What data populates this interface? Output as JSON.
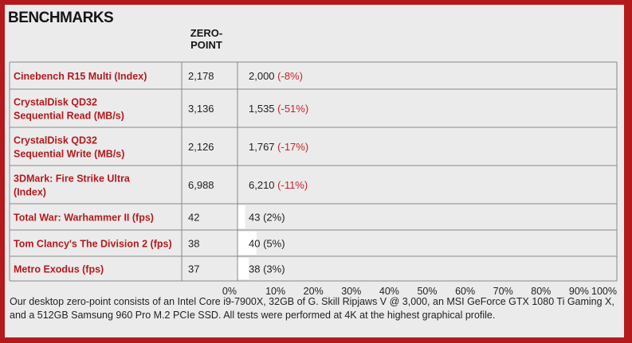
{
  "title": "BENCHMARKS",
  "column_header": "ZERO-\nPOINT",
  "footnote": "Our desktop zero-point consists of an Intel Core i9-7900X, 32GB of G. Skill Ripjaws V @ 3,000, an MSI GeForce GTX 1080 Ti Gaming X, and a 512GB Samsung 960 Pro M.2 PCIe SSD. All tests were performed at 4K at the highest graphical profile.",
  "colors": {
    "page_border": "#b41a1c",
    "label_text": "#b41a1c",
    "delta_text": "#c8222b",
    "bar": "#ffffff",
    "panel": "#ebebeb",
    "grid": "#8a8a8a"
  },
  "chart_data": {
    "type": "bar",
    "orientation": "horizontal",
    "xlim": [
      0,
      100
    ],
    "x_ticks": [
      "0%",
      "10%",
      "20%",
      "30%",
      "40%",
      "50%",
      "60%",
      "70%",
      "80%",
      "90%",
      "100%"
    ],
    "rows": [
      {
        "label": "Cinebench R15 Multi (Index)",
        "zero_point": "2,178",
        "value": "2,000",
        "delta": "(-8%)",
        "delta_percent": -8
      },
      {
        "label": "CrystalDisk QD32\nSequential Read (MB/s)",
        "zero_point": "3,136",
        "value": "1,535",
        "delta": "(-51%)",
        "delta_percent": -51
      },
      {
        "label": "CrystalDisk QD32\nSequential Write (MB/s)",
        "zero_point": "2,126",
        "value": "1,767",
        "delta": "(-17%)",
        "delta_percent": -17
      },
      {
        "label": "3DMark: Fire Strike Ultra\n(Index)",
        "zero_point": "6,988",
        "value": "6,210",
        "delta": "(-11%)",
        "delta_percent": -11
      },
      {
        "label": "Total War: Warhammer II (fps)",
        "zero_point": "42",
        "value": "43",
        "delta": "(2%)",
        "delta_percent": 2
      },
      {
        "label": "Tom Clancy's The Division 2 (fps)",
        "zero_point": "38",
        "value": "40",
        "delta": "(5%)",
        "delta_percent": 5
      },
      {
        "label": "Metro Exodus (fps)",
        "zero_point": "37",
        "value": "38",
        "delta": "(3%)",
        "delta_percent": 3
      }
    ]
  }
}
